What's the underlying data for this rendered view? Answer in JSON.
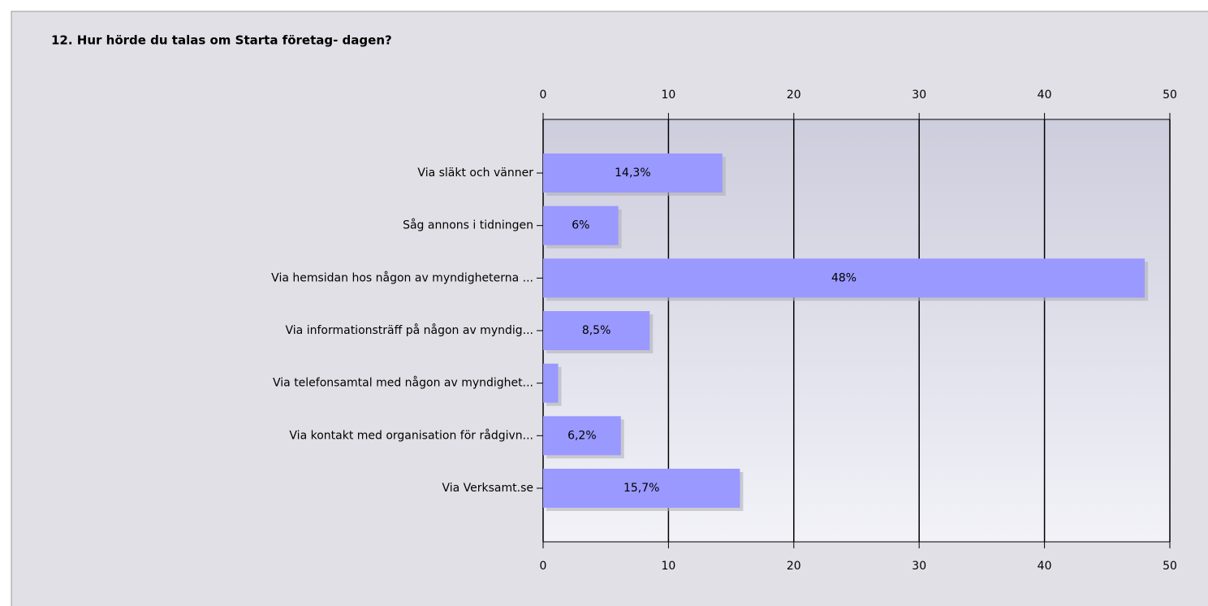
{
  "chart_data": {
    "type": "bar",
    "orientation": "horizontal",
    "title": "12. Hur hörde du talas om Starta företag- dagen?",
    "categories": [
      "Via släkt och vänner",
      "Såg annons i tidningen",
      "Via hemsidan hos någon av myndigheterna ...",
      "Via informationsträff på någon av myndig...",
      "Via telefonsamtal med någon av myndighet...",
      "Via kontakt med organisation för rådgivn...",
      "Via Verksamt.se"
    ],
    "values": [
      14.3,
      6,
      48,
      8.5,
      1.2,
      6.2,
      15.7
    ],
    "value_labels": [
      "14,3%",
      "6%",
      "48%",
      "8,5%",
      null,
      "6,2%",
      "15,7%"
    ],
    "color": "#9999ff",
    "xlim": [
      0,
      50
    ],
    "xticks": [
      0,
      10,
      20,
      30,
      40,
      50
    ],
    "grid": true
  }
}
